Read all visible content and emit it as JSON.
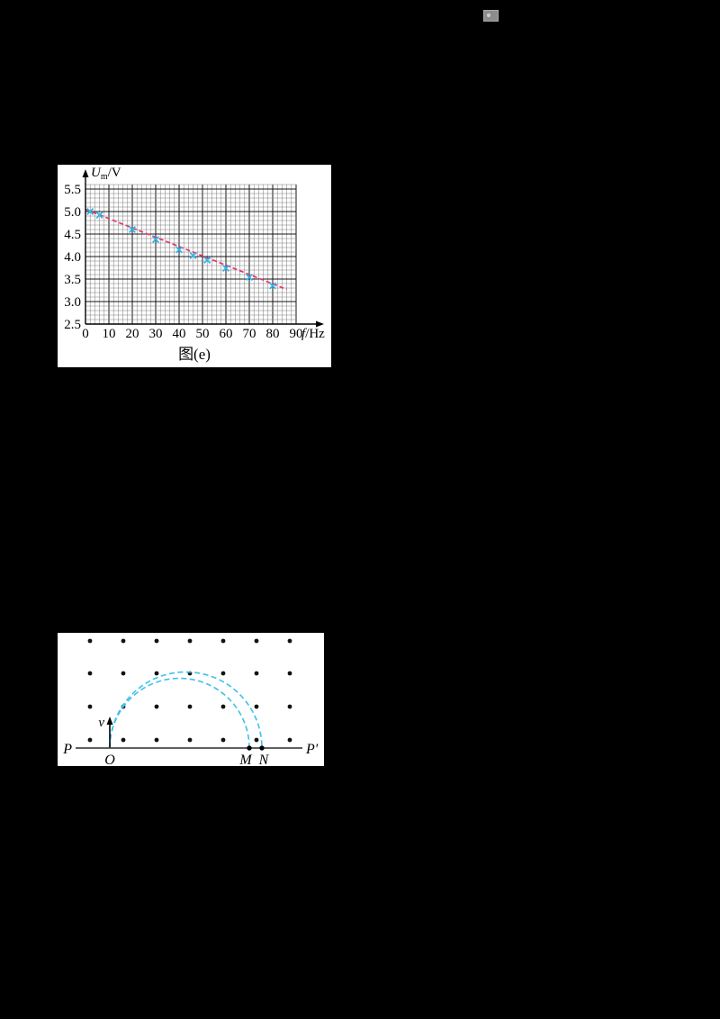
{
  "page": {
    "background": "#000000"
  },
  "top_icon": {
    "name": "broken-image-icon"
  },
  "figure_graph": {
    "caption": "图(e)"
  },
  "chart_data": {
    "type": "scatter",
    "title": "",
    "xlabel": {
      "symbol": "f",
      "unit": "/Hz"
    },
    "ylabel": {
      "symbol": "U",
      "subscript": "m",
      "unit": "/V"
    },
    "xlim": [
      0,
      96
    ],
    "ylim": [
      2.5,
      5.5
    ],
    "grid_top": 5.6,
    "xticks": [
      0,
      10,
      20,
      30,
      40,
      50,
      60,
      70,
      80,
      90
    ],
    "yticks": [
      2.5,
      3.0,
      3.5,
      4.0,
      4.5,
      5.0,
      5.5
    ],
    "x_minor_step": 2,
    "y_minor_step": 0.1,
    "points": [
      [
        2,
        5.0
      ],
      [
        6,
        4.92
      ],
      [
        20,
        4.6
      ],
      [
        30,
        4.38
      ],
      [
        40,
        4.15
      ],
      [
        46,
        4.02
      ],
      [
        52,
        3.92
      ],
      [
        60,
        3.74
      ],
      [
        70,
        3.54
      ],
      [
        80,
        3.35
      ]
    ],
    "fit_line": {
      "x1": 0,
      "y1": 5.05,
      "x2": 86,
      "y2": 3.27
    },
    "marker_color": "#35b4e6",
    "line_color": "#e0356e",
    "grid": true,
    "legend": "none"
  },
  "field_diagram": {
    "labels": {
      "p": "P",
      "p_prime": "P′",
      "o": "O",
      "m": "M",
      "n": "N",
      "v": "v"
    },
    "dot_color": "#111111",
    "arc_color": "#3fc0e8",
    "dot_rows": 4,
    "dot_cols": 7
  }
}
